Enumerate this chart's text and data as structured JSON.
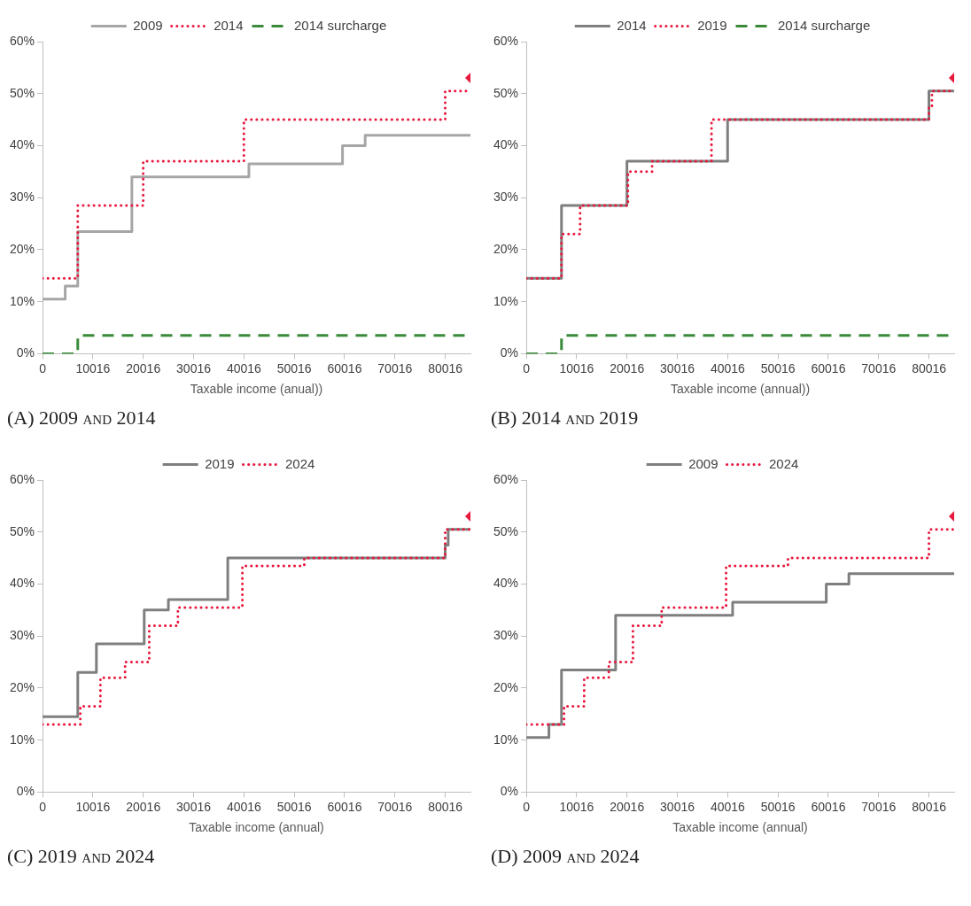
{
  "chart_data": [
    {
      "type": "step",
      "title": "(A) 2009 and 2014",
      "xlabel": "Taxable income (anual))",
      "xlim": [
        0,
        85016
      ],
      "xticks": [
        0,
        10016,
        20016,
        30016,
        40016,
        50016,
        60016,
        70016,
        80016
      ],
      "ylim": [
        0,
        60
      ],
      "yticks": [
        {
          "value": 0,
          "label": "0%"
        },
        {
          "value": 10,
          "label": "10%"
        },
        {
          "value": 20,
          "label": "20%"
        },
        {
          "value": 30,
          "label": "30%"
        },
        {
          "value": 40,
          "label": "40%"
        },
        {
          "value": 50,
          "label": "50%"
        },
        {
          "value": 60,
          "label": "60%"
        }
      ],
      "legend": "top",
      "marker": "none",
      "series": [
        {
          "name": "2009",
          "color": "#a6a6a6",
          "line_style": "solid",
          "x": [
            0,
            4500,
            7000,
            17750,
            41000,
            59600,
            64100,
            85016
          ],
          "values": [
            10.5,
            13,
            23.5,
            34,
            36.5,
            40,
            42,
            42
          ]
        },
        {
          "name": "2014",
          "color": "#e8173c",
          "line_style": "dotted",
          "x": [
            0,
            7000,
            20000,
            40000,
            80000,
            85016
          ],
          "values": [
            14.5,
            28.5,
            37,
            45,
            50.5,
            50.5
          ]
        },
        {
          "name": "2014 surcharge",
          "color": "#3a8a3a",
          "line_style": "dashed",
          "x": [
            0,
            7000,
            85016
          ],
          "values": [
            0,
            3.5,
            3.5
          ]
        },
        {
          "type": "scatter",
          "marker": "diamond",
          "color": "#e8173c",
          "x": [
            85016
          ],
          "values": [
            53
          ]
        }
      ]
    },
    {
      "type": "step",
      "title": "(B) 2014 and 2019",
      "xlabel": "Taxable income (annual))",
      "xlim": [
        0,
        85016
      ],
      "xticks": [
        0,
        10016,
        20016,
        30016,
        40016,
        50016,
        60016,
        70016,
        80016
      ],
      "ylim": [
        0,
        60
      ],
      "yticks": [
        {
          "value": 0,
          "label": "0%"
        },
        {
          "value": 10,
          "label": "10%"
        },
        {
          "value": 20,
          "label": "20%"
        },
        {
          "value": 30,
          "label": "30%"
        },
        {
          "value": 40,
          "label": "40%"
        },
        {
          "value": 50,
          "label": "50%"
        },
        {
          "value": 60,
          "label": "60%"
        }
      ],
      "legend": "top",
      "marker": "none",
      "series": [
        {
          "name": "2014",
          "color": "#7f7f7f",
          "line_style": "solid",
          "x": [
            0,
            7000,
            20000,
            40000,
            80000,
            85016
          ],
          "values": [
            14.5,
            28.5,
            37,
            45,
            50.5,
            50.5
          ]
        },
        {
          "name": "2019",
          "color": "#e8173c",
          "line_style": "dotted",
          "x": [
            0,
            7000,
            10700,
            20200,
            25000,
            36800,
            80000,
            80600,
            85016
          ],
          "values": [
            14.5,
            23,
            28.5,
            35,
            37,
            45,
            47.5,
            50.5,
            50.5
          ]
        },
        {
          "name": "2014 surcharge",
          "color": "#3a8a3a",
          "line_style": "dashed",
          "x": [
            0,
            7000,
            85016
          ],
          "values": [
            0,
            3.5,
            3.5
          ]
        },
        {
          "type": "scatter",
          "marker": "diamond",
          "color": "#e8173c",
          "x": [
            85016
          ],
          "values": [
            53
          ]
        }
      ]
    },
    {
      "type": "step",
      "title": "(C) 2019 and 2024",
      "xlabel": "Taxable income (annual)",
      "xlim": [
        0,
        85016
      ],
      "xticks": [
        0,
        10016,
        20016,
        30016,
        40016,
        50016,
        60016,
        70016,
        80016
      ],
      "ylim": [
        0,
        60
      ],
      "yticks": [
        {
          "value": 0,
          "label": "0%"
        },
        {
          "value": 10,
          "label": "10%"
        },
        {
          "value": 20,
          "label": "20%"
        },
        {
          "value": 30,
          "label": "30%"
        },
        {
          "value": 40,
          "label": "40%"
        },
        {
          "value": 50,
          "label": "50%"
        },
        {
          "value": 60,
          "label": "60%"
        }
      ],
      "legend": "top",
      "marker": "none",
      "series": [
        {
          "name": "2019",
          "color": "#7f7f7f",
          "line_style": "solid",
          "x": [
            0,
            7000,
            10700,
            20200,
            25000,
            36800,
            80000,
            80600,
            85016
          ],
          "values": [
            14.5,
            23,
            28.5,
            35,
            37,
            45,
            47.5,
            50.5,
            50.5
          ]
        },
        {
          "name": "2024",
          "color": "#e8173c",
          "line_style": "dotted",
          "x": [
            0,
            7500,
            11500,
            16400,
            21200,
            26900,
            39700,
            52000,
            80000,
            85016
          ],
          "values": [
            13,
            16.5,
            22,
            25,
            32,
            35.5,
            43.5,
            45,
            50.5,
            50.5
          ]
        },
        {
          "type": "scatter",
          "marker": "diamond",
          "color": "#e8173c",
          "x": [
            85016
          ],
          "values": [
            53
          ]
        }
      ]
    },
    {
      "type": "step",
      "title": "(D) 2009 and 2024",
      "xlabel": "Taxable income (annual)",
      "xlim": [
        0,
        85016
      ],
      "xticks": [
        0,
        10016,
        20016,
        30016,
        40016,
        50016,
        60016,
        70016,
        80016
      ],
      "ylim": [
        0,
        60
      ],
      "yticks": [
        {
          "value": 0,
          "label": "0%"
        },
        {
          "value": 10,
          "label": "10%"
        },
        {
          "value": 20,
          "label": "20%"
        },
        {
          "value": 30,
          "label": "30%"
        },
        {
          "value": 40,
          "label": "40%"
        },
        {
          "value": 50,
          "label": "50%"
        },
        {
          "value": 60,
          "label": "60%"
        }
      ],
      "legend": "top",
      "marker": "none",
      "series": [
        {
          "name": "2009",
          "color": "#7f7f7f",
          "line_style": "solid",
          "x": [
            0,
            4500,
            7000,
            17750,
            41000,
            59600,
            64100,
            85016
          ],
          "values": [
            10.5,
            13,
            23.5,
            34,
            36.5,
            40,
            42,
            42
          ]
        },
        {
          "name": "2024",
          "color": "#e8173c",
          "line_style": "dotted",
          "x": [
            0,
            7500,
            11500,
            16400,
            21200,
            26900,
            39700,
            52000,
            80000,
            85016
          ],
          "values": [
            13,
            16.5,
            22,
            25,
            32,
            35.5,
            43.5,
            45,
            50.5,
            50.5
          ]
        },
        {
          "type": "scatter",
          "marker": "diamond",
          "color": "#e8173c",
          "x": [
            85016
          ],
          "values": [
            53
          ]
        }
      ]
    }
  ]
}
